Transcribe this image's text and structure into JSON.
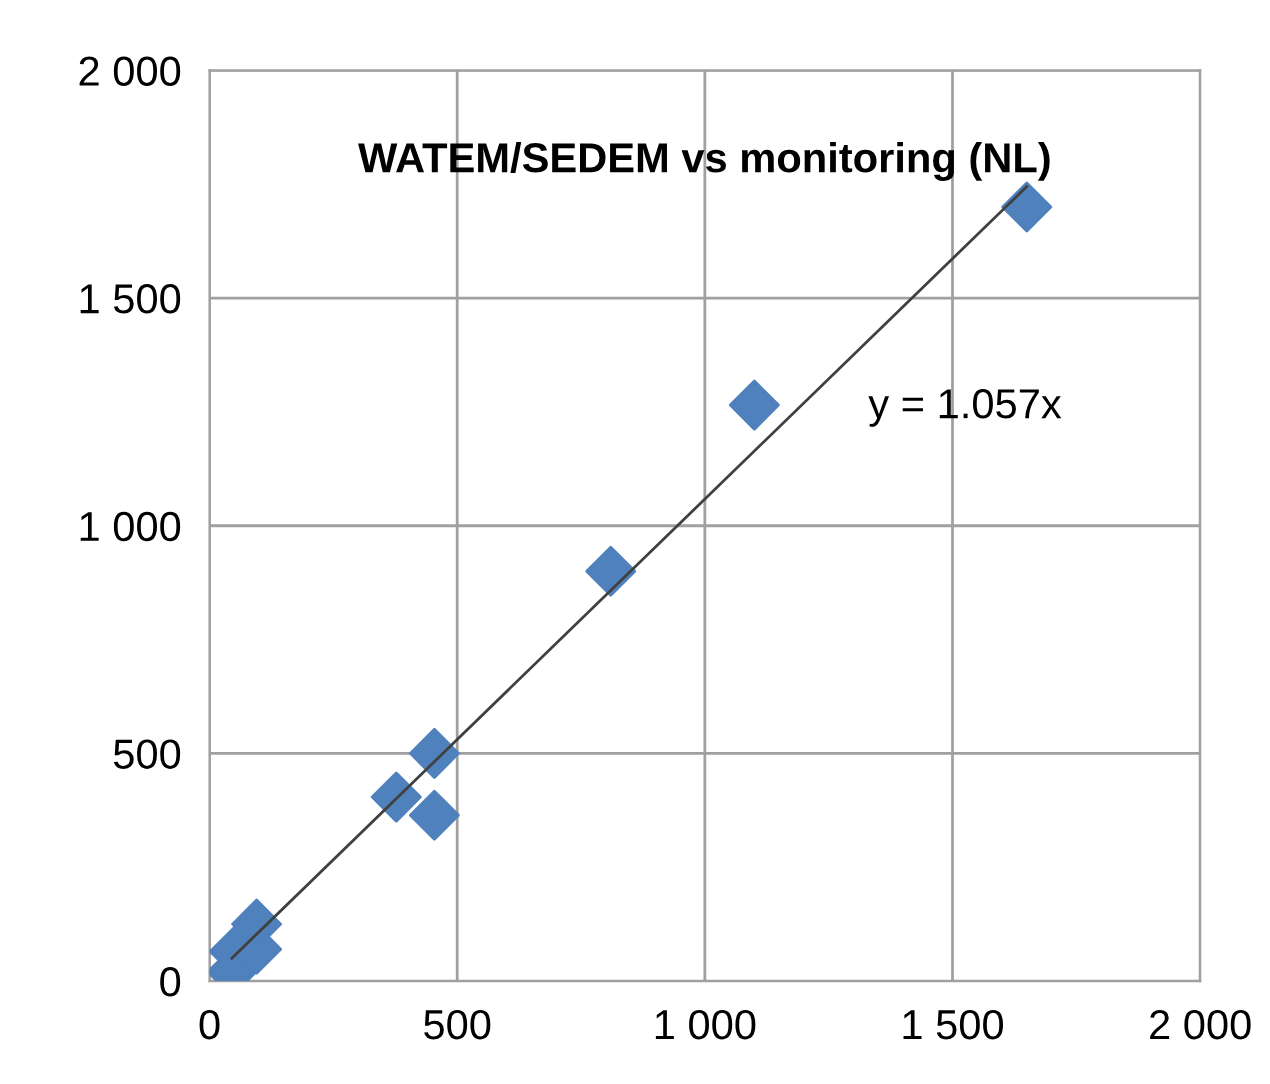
{
  "chart_data": {
    "type": "scatter",
    "title": "WATEM/SEDEM vs monitoring (NL)",
    "series": [
      {
        "color": "#4f81bd",
        "marker": "diamond",
        "x": [
          45,
          50,
          95,
          95,
          377,
          454,
          454,
          810,
          1100,
          1650
        ],
        "values": [
          20,
          65,
          70,
          125,
          404,
          500,
          364,
          900,
          1265,
          1700
        ]
      },
      {
        "type": "line",
        "color": "#404040",
        "marker": "none",
        "x": [
          45,
          1650
        ],
        "values": [
          50,
          1745
        ]
      }
    ],
    "annotations": [
      "y = 1.057x"
    ],
    "xlim": [
      0,
      2000
    ],
    "xticks": [
      {
        "value": 0,
        "label": "0"
      },
      {
        "value": 500,
        "label": "500"
      },
      {
        "value": 1000,
        "label": "1 000"
      },
      {
        "value": 1500,
        "label": "1 500"
      },
      {
        "value": 2000,
        "label": "2 000"
      }
    ],
    "ylim": [
      0,
      2000
    ],
    "yticks": [
      {
        "value": 0,
        "label": "0"
      },
      {
        "value": 500,
        "label": "500"
      },
      {
        "value": 1000,
        "label": "1 000"
      },
      {
        "value": 1500,
        "label": "1 500"
      },
      {
        "value": 2000,
        "label": "2 000"
      }
    ],
    "grid": true,
    "legend": false
  }
}
